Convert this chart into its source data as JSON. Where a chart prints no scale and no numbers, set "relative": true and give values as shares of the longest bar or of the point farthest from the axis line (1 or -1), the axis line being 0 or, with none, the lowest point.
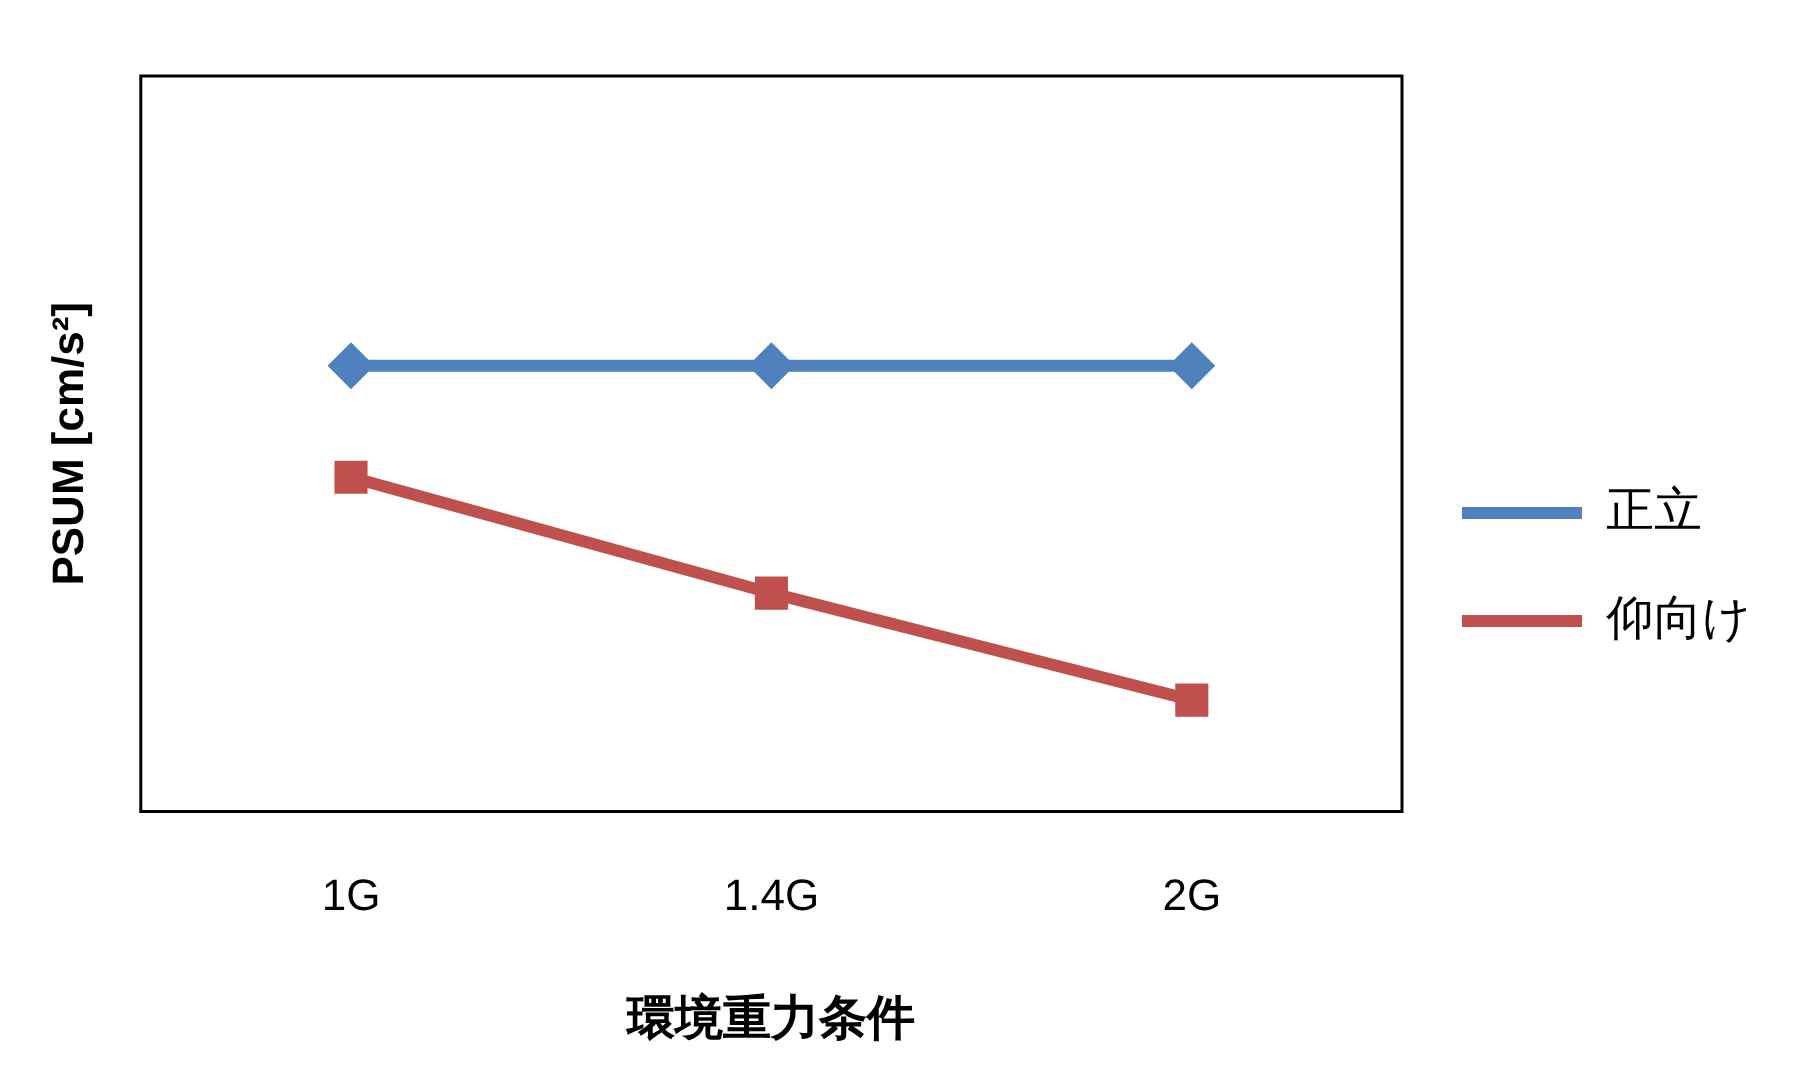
{
  "chart_data": {
    "type": "line",
    "relative": true,
    "xlabel": "環境重力条件",
    "ylabel": "PSUM [cm/s²]",
    "categories": [
      "1G",
      "1.4G",
      "2G"
    ],
    "legend": "right",
    "grid": false,
    "series": [
      {
        "name": "正立",
        "color": "#4f81bd",
        "marker": "diamond",
        "values": [
          1,
          1,
          1
        ]
      },
      {
        "name": "仰向け",
        "color": "#c0504d",
        "marker": "square",
        "values": [
          0.75,
          0.49,
          0.25
        ]
      }
    ]
  }
}
